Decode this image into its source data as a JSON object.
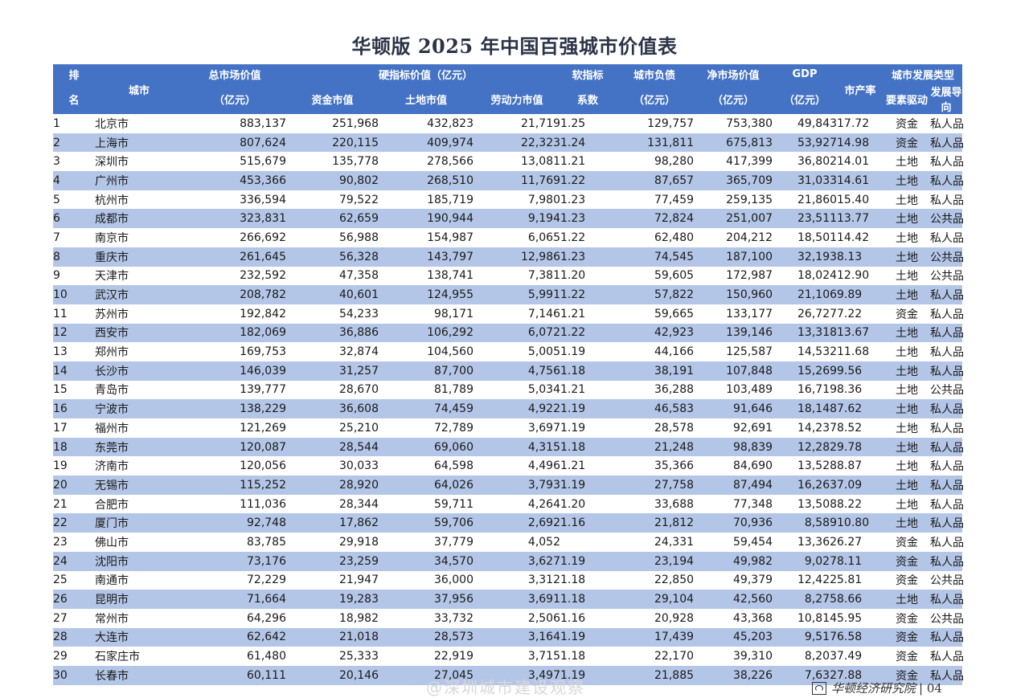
{
  "title": "华顿版 2025 年中国百强城市价值表",
  "header": {
    "rank_top": "排",
    "rank_bottom": "名",
    "city": "城市",
    "total_top": "总市场价值",
    "total_bottom": "（亿元）",
    "hard_group": "硬指标价值（亿元）",
    "capital": "资金市值",
    "land": "土地市值",
    "labor": "劳动力市值",
    "soft_top": "软指标",
    "soft_bottom": "系数",
    "debt_top": "城市负债",
    "debt_bottom": "（亿元）",
    "net_top": "净市场价值",
    "net_bottom": "（亿元）",
    "gdp_top": "GDP",
    "gdp_bottom": "（亿元）",
    "rate": "市产率",
    "type_group": "城市发展类型",
    "driver": "要素驱动",
    "orient": "发展导向"
  },
  "rows": [
    {
      "rank": "1",
      "city": "北京市",
      "total": "883,137",
      "capital": "251,968",
      "land": "432,823",
      "labor": "21,719",
      "soft": "1.25",
      "debt": "129,757",
      "net": "753,380",
      "gdp": "49,843",
      "rate": "17.72",
      "driver": "资金",
      "orient": "私人品"
    },
    {
      "rank": "2",
      "city": "上海市",
      "total": "807,624",
      "capital": "220,115",
      "land": "409,974",
      "labor": "22,323",
      "soft": "1.24",
      "debt": "131,811",
      "net": "675,813",
      "gdp": "53,927",
      "rate": "14.98",
      "driver": "资金",
      "orient": "私人品"
    },
    {
      "rank": "3",
      "city": "深圳市",
      "total": "515,679",
      "capital": "135,778",
      "land": "278,566",
      "labor": "13,081",
      "soft": "1.21",
      "debt": "98,280",
      "net": "417,399",
      "gdp": "36,802",
      "rate": "14.01",
      "driver": "土地",
      "orient": "私人品"
    },
    {
      "rank": "4",
      "city": "广州市",
      "total": "453,366",
      "capital": "90,802",
      "land": "268,510",
      "labor": "11,769",
      "soft": "1.22",
      "debt": "87,657",
      "net": "365,709",
      "gdp": "31,033",
      "rate": "14.61",
      "driver": "土地",
      "orient": "私人品"
    },
    {
      "rank": "5",
      "city": "杭州市",
      "total": "336,594",
      "capital": "79,522",
      "land": "185,719",
      "labor": "7,980",
      "soft": "1.23",
      "debt": "77,459",
      "net": "259,135",
      "gdp": "21,860",
      "rate": "15.40",
      "driver": "土地",
      "orient": "私人品"
    },
    {
      "rank": "6",
      "city": "成都市",
      "total": "323,831",
      "capital": "62,659",
      "land": "190,944",
      "labor": "9,194",
      "soft": "1.23",
      "debt": "72,824",
      "net": "251,007",
      "gdp": "23,511",
      "rate": "13.77",
      "driver": "土地",
      "orient": "公共品"
    },
    {
      "rank": "7",
      "city": "南京市",
      "total": "266,692",
      "capital": "56,988",
      "land": "154,987",
      "labor": "6,065",
      "soft": "1.22",
      "debt": "62,480",
      "net": "204,212",
      "gdp": "18,501",
      "rate": "14.42",
      "driver": "土地",
      "orient": "私人品"
    },
    {
      "rank": "8",
      "city": "重庆市",
      "total": "261,645",
      "capital": "56,328",
      "land": "143,797",
      "labor": "12,986",
      "soft": "1.23",
      "debt": "74,545",
      "net": "187,100",
      "gdp": "32,193",
      "rate": "8.13",
      "driver": "土地",
      "orient": "公共品"
    },
    {
      "rank": "9",
      "city": "天津市",
      "total": "232,592",
      "capital": "47,358",
      "land": "138,741",
      "labor": "7,381",
      "soft": "1.20",
      "debt": "59,605",
      "net": "172,987",
      "gdp": "18,024",
      "rate": "12.90",
      "driver": "土地",
      "orient": "公共品"
    },
    {
      "rank": "10",
      "city": "武汉市",
      "total": "208,782",
      "capital": "40,601",
      "land": "124,955",
      "labor": "5,991",
      "soft": "1.22",
      "debt": "57,822",
      "net": "150,960",
      "gdp": "21,106",
      "rate": "9.89",
      "driver": "土地",
      "orient": "私人品"
    },
    {
      "rank": "11",
      "city": "苏州市",
      "total": "192,842",
      "capital": "54,233",
      "land": "98,171",
      "labor": "7,146",
      "soft": "1.21",
      "debt": "59,665",
      "net": "133,177",
      "gdp": "26,727",
      "rate": "7.22",
      "driver": "资金",
      "orient": "私人品"
    },
    {
      "rank": "12",
      "city": "西安市",
      "total": "182,069",
      "capital": "36,886",
      "land": "106,292",
      "labor": "6,072",
      "soft": "1.22",
      "debt": "42,923",
      "net": "139,146",
      "gdp": "13,318",
      "rate": "13.67",
      "driver": "土地",
      "orient": "私人品"
    },
    {
      "rank": "13",
      "city": "郑州市",
      "total": "169,753",
      "capital": "32,874",
      "land": "104,560",
      "labor": "5,005",
      "soft": "1.19",
      "debt": "44,166",
      "net": "125,587",
      "gdp": "14,532",
      "rate": "11.68",
      "driver": "土地",
      "orient": "私人品"
    },
    {
      "rank": "14",
      "city": "长沙市",
      "total": "146,039",
      "capital": "31,257",
      "land": "87,700",
      "labor": "4,756",
      "soft": "1.18",
      "debt": "38,191",
      "net": "107,848",
      "gdp": "15,269",
      "rate": "9.56",
      "driver": "土地",
      "orient": "私人品"
    },
    {
      "rank": "15",
      "city": "青岛市",
      "total": "139,777",
      "capital": "28,670",
      "land": "81,789",
      "labor": "5,034",
      "soft": "1.21",
      "debt": "36,288",
      "net": "103,489",
      "gdp": "16,719",
      "rate": "8.36",
      "driver": "土地",
      "orient": "公共品"
    },
    {
      "rank": "16",
      "city": "宁波市",
      "total": "138,229",
      "capital": "36,608",
      "land": "74,459",
      "labor": "4,922",
      "soft": "1.19",
      "debt": "46,583",
      "net": "91,646",
      "gdp": "18,148",
      "rate": "7.62",
      "driver": "土地",
      "orient": "私人品"
    },
    {
      "rank": "17",
      "city": "福州市",
      "total": "121,269",
      "capital": "25,210",
      "land": "72,789",
      "labor": "3,697",
      "soft": "1.19",
      "debt": "28,578",
      "net": "92,691",
      "gdp": "14,237",
      "rate": "8.52",
      "driver": "土地",
      "orient": "私人品"
    },
    {
      "rank": "18",
      "city": "东莞市",
      "total": "120,087",
      "capital": "28,544",
      "land": "69,060",
      "labor": "4,315",
      "soft": "1.18",
      "debt": "21,248",
      "net": "98,839",
      "gdp": "12,282",
      "rate": "9.78",
      "driver": "土地",
      "orient": "私人品"
    },
    {
      "rank": "19",
      "city": "济南市",
      "total": "120,056",
      "capital": "30,033",
      "land": "64,598",
      "labor": "4,496",
      "soft": "1.21",
      "debt": "35,366",
      "net": "84,690",
      "gdp": "13,528",
      "rate": "8.87",
      "driver": "土地",
      "orient": "私人品"
    },
    {
      "rank": "20",
      "city": "无锡市",
      "total": "115,252",
      "capital": "28,920",
      "land": "64,026",
      "labor": "3,793",
      "soft": "1.19",
      "debt": "27,758",
      "net": "87,494",
      "gdp": "16,263",
      "rate": "7.09",
      "driver": "土地",
      "orient": "私人品"
    },
    {
      "rank": "21",
      "city": "合肥市",
      "total": "111,036",
      "capital": "28,344",
      "land": "59,711",
      "labor": "4,264",
      "soft": "1.20",
      "debt": "33,688",
      "net": "77,348",
      "gdp": "13,508",
      "rate": "8.22",
      "driver": "土地",
      "orient": "私人品"
    },
    {
      "rank": "22",
      "city": "厦门市",
      "total": "92,748",
      "capital": "17,862",
      "land": "59,706",
      "labor": "2,692",
      "soft": "1.16",
      "debt": "21,812",
      "net": "70,936",
      "gdp": "8,589",
      "rate": "10.80",
      "driver": "土地",
      "orient": "私人品"
    },
    {
      "rank": "23",
      "city": "佛山市",
      "total": "83,785",
      "capital": "29,918",
      "land": "37,779",
      "labor": "4,052",
      "soft": "",
      "debt": "24,331",
      "net": "59,454",
      "gdp": "13,362",
      "rate": "6.27",
      "driver": "资金",
      "orient": "私人品"
    },
    {
      "rank": "24",
      "city": "沈阳市",
      "total": "73,176",
      "capital": "23,259",
      "land": "34,570",
      "labor": "3,627",
      "soft": "1.19",
      "debt": "23,194",
      "net": "49,982",
      "gdp": "9,027",
      "rate": "8.11",
      "driver": "资金",
      "orient": "私人品"
    },
    {
      "rank": "25",
      "city": "南通市",
      "total": "72,229",
      "capital": "21,947",
      "land": "36,000",
      "labor": "3,312",
      "soft": "1.18",
      "debt": "22,850",
      "net": "49,379",
      "gdp": "12,422",
      "rate": "5.81",
      "driver": "资金",
      "orient": "公共品"
    },
    {
      "rank": "26",
      "city": "昆明市",
      "total": "71,664",
      "capital": "19,283",
      "land": "37,956",
      "labor": "3,691",
      "soft": "1.18",
      "debt": "29,104",
      "net": "42,560",
      "gdp": "8,275",
      "rate": "8.66",
      "driver": "土地",
      "orient": "私人品"
    },
    {
      "rank": "27",
      "city": "常州市",
      "total": "64,296",
      "capital": "18,982",
      "land": "33,732",
      "labor": "2,506",
      "soft": "1.16",
      "debt": "20,928",
      "net": "43,368",
      "gdp": "10,814",
      "rate": "5.95",
      "driver": "资金",
      "orient": "公共品"
    },
    {
      "rank": "28",
      "city": "大连市",
      "total": "62,642",
      "capital": "21,018",
      "land": "28,573",
      "labor": "3,164",
      "soft": "1.19",
      "debt": "17,439",
      "net": "45,203",
      "gdp": "9,517",
      "rate": "6.58",
      "driver": "资金",
      "orient": "私人品"
    },
    {
      "rank": "29",
      "city": "石家庄市",
      "total": "61,480",
      "capital": "25,333",
      "land": "22,919",
      "labor": "3,715",
      "soft": "1.18",
      "debt": "22,170",
      "net": "39,310",
      "gdp": "8,203",
      "rate": "7.49",
      "driver": "资金",
      "orient": "私人品"
    },
    {
      "rank": "30",
      "city": "长春市",
      "total": "60,111",
      "capital": "20,146",
      "land": "27,045",
      "labor": "3,497",
      "soft": "1.19",
      "debt": "21,885",
      "net": "38,226",
      "gdp": "7,632",
      "rate": "7.88",
      "driver": "资金",
      "orient": "私人品"
    }
  ],
  "footer": {
    "watermark": "@深圳城市建设观察",
    "brand": "华顿经济研究院",
    "page": "| 04"
  },
  "colors": {
    "header_bg": "#4472c4",
    "band_row_bg": "#b4c6e7",
    "title_color": "#2b3447"
  }
}
